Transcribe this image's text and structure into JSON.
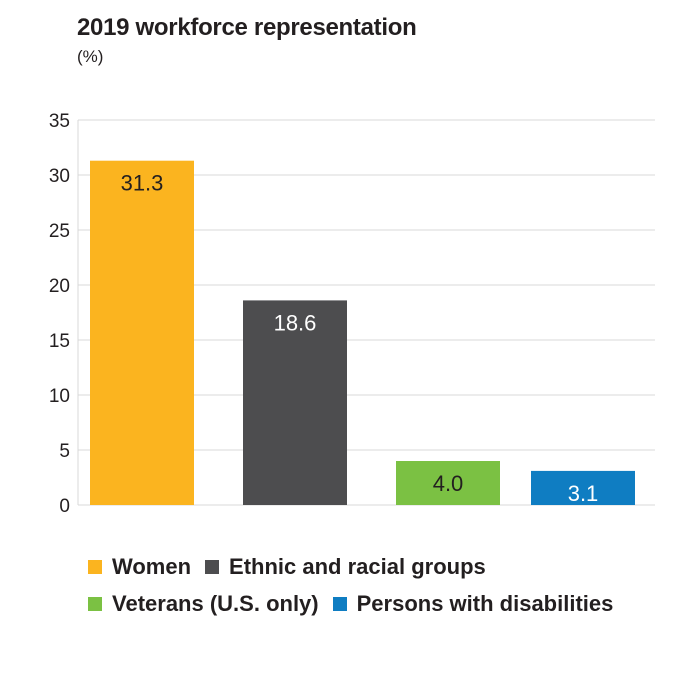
{
  "chart_data": {
    "type": "bar",
    "title": "2019 workforce representation",
    "subtitle": "(%)",
    "categories": [
      "Women",
      "Ethnic and racial groups",
      "Veterans (U.S. only)",
      "Persons with disabilities"
    ],
    "values": [
      31.3,
      18.6,
      4.0,
      3.1
    ],
    "value_labels": [
      "31.3",
      "18.6",
      "4.0",
      "3.1"
    ],
    "colors": [
      "#fbb41f",
      "#4d4d4f",
      "#7bc143",
      "#0f7dc2"
    ],
    "label_colors": [
      "#231f20",
      "#ffffff",
      "#231f20",
      "#ffffff"
    ],
    "ylim": [
      0,
      35
    ],
    "yticks": [
      0,
      5,
      10,
      15,
      20,
      25,
      30,
      35
    ],
    "grid": true,
    "legend_position": "bottom"
  }
}
